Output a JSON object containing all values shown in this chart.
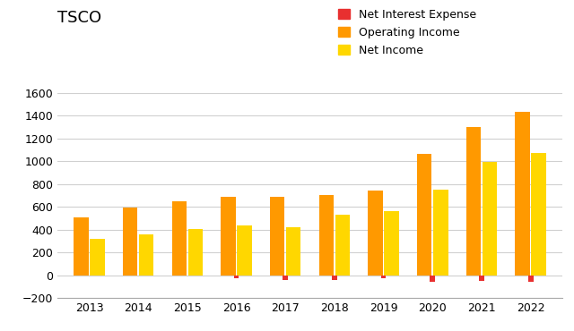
{
  "title": "TSCO",
  "years": [
    2013,
    2014,
    2015,
    2016,
    2017,
    2018,
    2019,
    2020,
    2021,
    2022
  ],
  "net_interest_expense": [
    -5,
    -5,
    -5,
    -30,
    -40,
    -40,
    -30,
    -55,
    -50,
    -60
  ],
  "operating_income": [
    510,
    590,
    650,
    690,
    685,
    700,
    740,
    1060,
    1300,
    1430
  ],
  "net_income": [
    320,
    360,
    405,
    435,
    422,
    530,
    560,
    748,
    990,
    1075
  ],
  "colors": {
    "net_interest": "#e83030",
    "operating": "#ff9900",
    "net_income": "#ffd700"
  },
  "legend_labels": [
    "Net Interest Expense",
    "Operating Income",
    "Net Income"
  ],
  "ylim": [
    -200,
    1600
  ],
  "yticks": [
    -200,
    0,
    200,
    400,
    600,
    800,
    1000,
    1200,
    1400,
    1600
  ],
  "background_color": "#ffffff",
  "grid_color": "#d0d0d0"
}
